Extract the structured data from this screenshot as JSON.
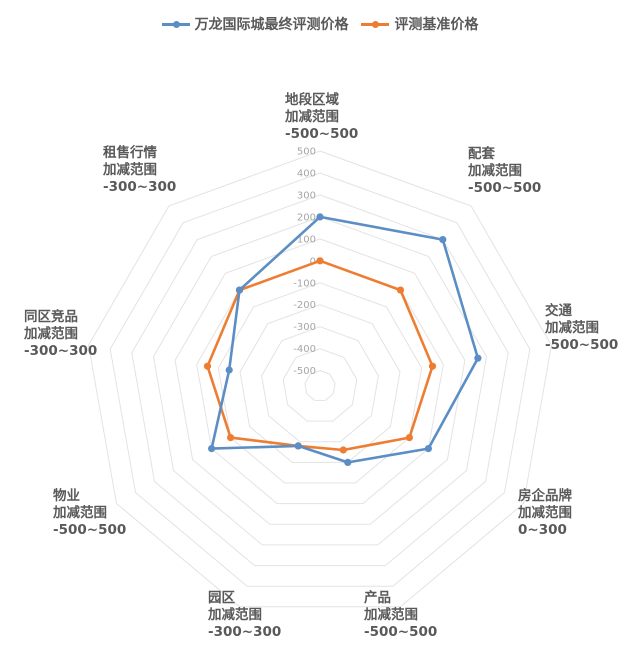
{
  "legend": [
    {
      "name": "万龙国际城最终评测价格",
      "color": "#5B8EC4"
    },
    {
      "name": "评测基准价格",
      "color": "#ED7D31"
    }
  ],
  "categories": [
    {
      "name": "地段区域",
      "sub": "加减范围",
      "range": "-500~500"
    },
    {
      "name": "配套",
      "sub": "加减范围",
      "range": "-500~500"
    },
    {
      "name": "交通",
      "sub": "加减范围",
      "range": "-500~500"
    },
    {
      "name": "房企品牌",
      "sub": "加减范围",
      "range": "0~300"
    },
    {
      "name": "产品",
      "sub": "加减范围",
      "range": "-500~500"
    },
    {
      "name": "园区",
      "sub": "加减范围",
      "range": "-300~300"
    },
    {
      "name": "物业",
      "sub": "加减范围",
      "range": "-500~500"
    },
    {
      "name": "同区竞品",
      "sub": "加减范围",
      "range": "-300~300"
    },
    {
      "name": "租售行情",
      "sub": "加减范围",
      "range": "-300~300"
    }
  ],
  "chart_data": {
    "type": "radar",
    "title": "",
    "categories": [
      "地段区域",
      "配套",
      "交通",
      "房企品牌",
      "产品",
      "园区",
      "物业",
      "同区竞品",
      "租售行情"
    ],
    "category_ranges": [
      "-500~500",
      "-500~500",
      "-500~500",
      "0~300",
      "-500~500",
      "-300~300",
      "-500~500",
      "-300~300",
      "-300~300"
    ],
    "series": [
      {
        "name": "万龙国际城最终评测价格",
        "color": "#5B8EC4",
        "values": [
          200,
          300,
          160,
          0,
          -200,
          -280,
          0,
          -150,
          0
        ]
      },
      {
        "name": "评测基准价格",
        "color": "#ED7D31",
        "values": [
          0,
          0,
          -50,
          -100,
          -260,
          -280,
          -100,
          -50,
          0
        ]
      }
    ],
    "axis_ticks": [
      500,
      400,
      300,
      200,
      100,
      0,
      -100,
      -200,
      -300,
      -400,
      -500
    ],
    "rlim": [
      -570,
      500
    ],
    "grid": true,
    "legend_position": "top"
  }
}
